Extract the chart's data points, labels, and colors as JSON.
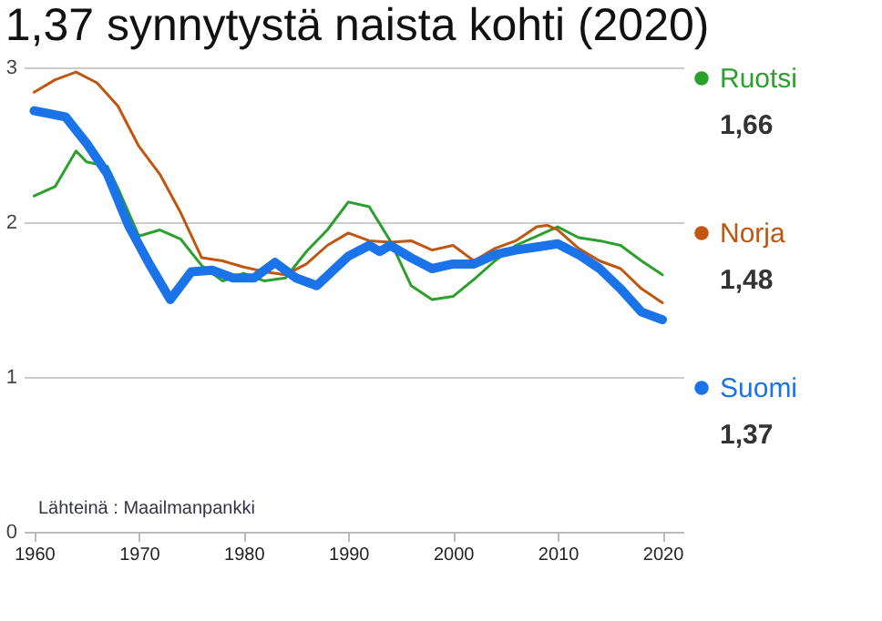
{
  "chart_data": {
    "type": "line",
    "title": "1,37 synnytystä naista kohti (2020)",
    "annotations": [
      "Lähteinä : Maailmanpankki",
      "1,66",
      "1,48",
      "1,37"
    ],
    "xlim": [
      1959,
      2022
    ],
    "xticks": [
      1960,
      1970,
      1980,
      1990,
      2000,
      2010,
      2020
    ],
    "ylim": [
      0,
      3
    ],
    "yticks": [
      0,
      1,
      2,
      3
    ],
    "grid": "y",
    "legend": "right",
    "marker": "none",
    "line_style": "solid",
    "series": [
      {
        "name": "Ruotsi",
        "color": "#2ca02c",
        "x": [
          1960,
          1962,
          1964,
          1965,
          1967,
          1968,
          1970,
          1972,
          1974,
          1976,
          1978,
          1980,
          1982,
          1984,
          1986,
          1988,
          1990,
          1992,
          1994,
          1996,
          1998,
          2000,
          2002,
          2004,
          2006,
          2008,
          2010,
          2012,
          2014,
          2016,
          2018,
          2020
        ],
        "values": [
          2.17,
          2.23,
          2.46,
          2.39,
          2.36,
          2.22,
          1.91,
          1.95,
          1.89,
          1.72,
          1.62,
          1.67,
          1.62,
          1.64,
          1.81,
          1.95,
          2.13,
          2.1,
          1.88,
          1.59,
          1.5,
          1.52,
          1.63,
          1.75,
          1.85,
          1.91,
          1.97,
          1.9,
          1.88,
          1.85,
          1.75,
          1.66
        ]
      },
      {
        "name": "Norja",
        "color": "#c0560f",
        "x": [
          1960,
          1962,
          1964,
          1966,
          1968,
          1970,
          1972,
          1974,
          1976,
          1978,
          1980,
          1982,
          1984,
          1986,
          1988,
          1990,
          1992,
          1994,
          1996,
          1998,
          2000,
          2002,
          2004,
          2006,
          2008,
          2009,
          2010,
          2012,
          2014,
          2016,
          2018,
          2020
        ],
        "values": [
          2.84,
          2.92,
          2.97,
          2.9,
          2.75,
          2.49,
          2.31,
          2.06,
          1.77,
          1.75,
          1.71,
          1.68,
          1.66,
          1.73,
          1.85,
          1.93,
          1.88,
          1.87,
          1.88,
          1.82,
          1.85,
          1.75,
          1.83,
          1.88,
          1.97,
          1.98,
          1.95,
          1.83,
          1.75,
          1.7,
          1.57,
          1.48
        ]
      },
      {
        "name": "Suomi",
        "color": "#1a73e8",
        "x": [
          1960,
          1963,
          1965,
          1967,
          1969,
          1971,
          1973,
          1975,
          1977,
          1979,
          1981,
          1983,
          1985,
          1987,
          1990,
          1992,
          1993,
          1994,
          1996,
          1998,
          2000,
          2002,
          2004,
          2006,
          2008,
          2010,
          2012,
          2014,
          2016,
          2018,
          2020
        ],
        "values": [
          2.72,
          2.68,
          2.51,
          2.31,
          1.98,
          1.73,
          1.5,
          1.68,
          1.69,
          1.64,
          1.64,
          1.74,
          1.64,
          1.59,
          1.78,
          1.85,
          1.81,
          1.85,
          1.77,
          1.7,
          1.73,
          1.73,
          1.79,
          1.82,
          1.84,
          1.86,
          1.79,
          1.7,
          1.57,
          1.42,
          1.37
        ]
      }
    ]
  }
}
